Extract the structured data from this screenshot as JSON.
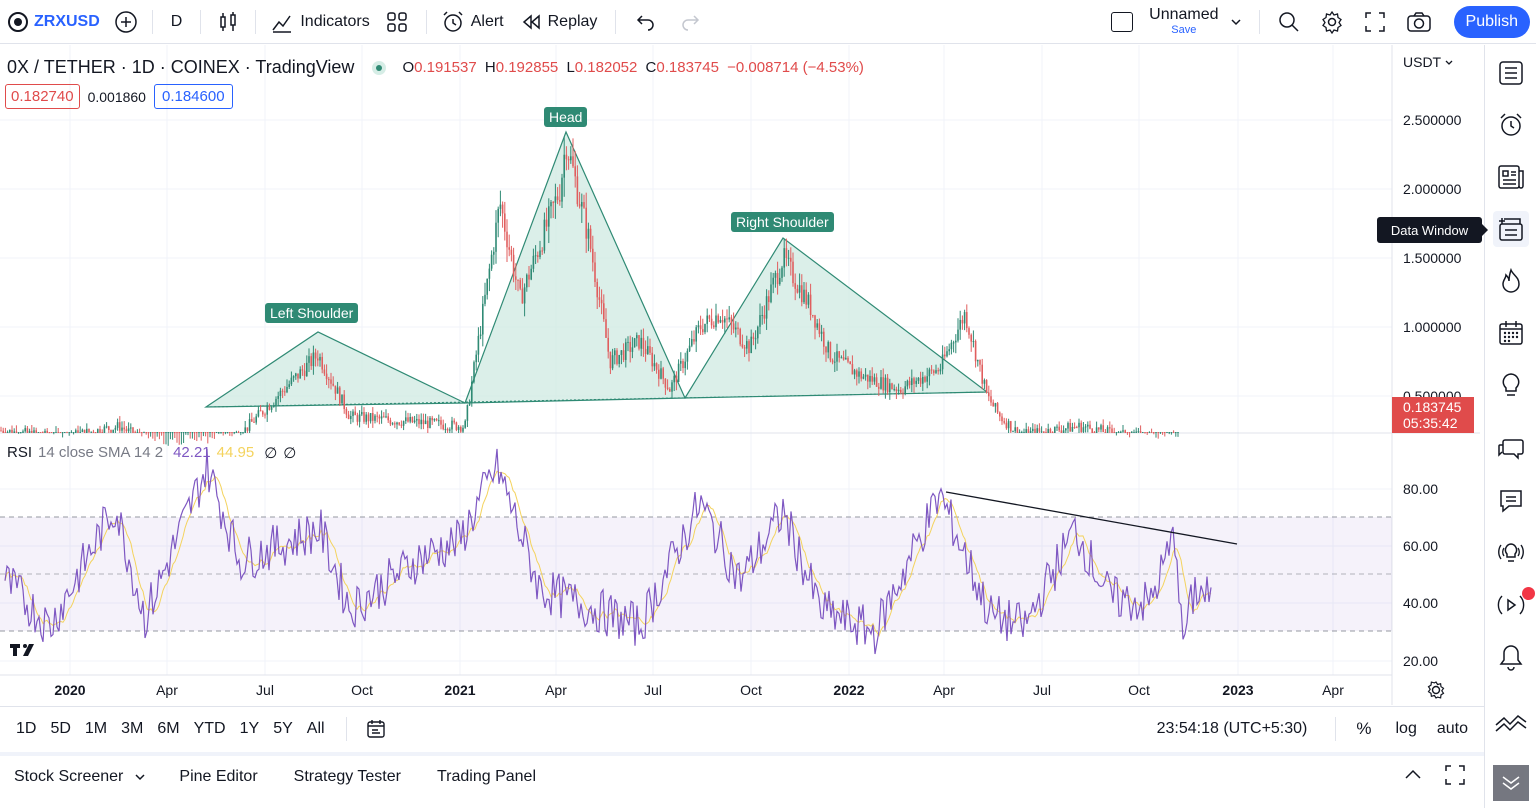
{
  "topbar": {
    "symbol": "ZRXUSD",
    "interval": "D",
    "indicators_label": "Indicators",
    "alert_label": "Alert",
    "replay_label": "Replay",
    "layout_name": "Unnamed",
    "save_label": "Save",
    "publish_label": "Publish"
  },
  "legend": {
    "title": "0X / TETHER · 1D · COINEX · TradingView",
    "o_label": "O",
    "o_val": "0.191537",
    "h_label": "H",
    "h_val": "0.192855",
    "l_label": "L",
    "l_val": "0.182052",
    "c_label": "C",
    "c_val": "0.183745",
    "change": "−0.008714 (−4.53%)",
    "bid": "0.182740",
    "spread": "0.001860",
    "ask": "0.184600"
  },
  "annotations": {
    "left_shoulder": "Left Shoulder",
    "head": "Head",
    "right_shoulder": "Right Shoulder"
  },
  "price_axis": {
    "currency": "USDT",
    "ticks": [
      "2.500000",
      "2.000000",
      "1.500000",
      "1.000000",
      "0.500000"
    ],
    "last_price": "0.183745",
    "countdown": "05:35:42"
  },
  "rsi": {
    "label": "RSI",
    "params": "14 close SMA 14 2",
    "value": "42.21",
    "sma_value": "44.95",
    "empty1": "∅",
    "empty2": "∅",
    "ticks": [
      "80.00",
      "60.00",
      "40.00",
      "20.00"
    ]
  },
  "time_axis": [
    "2020",
    "Apr",
    "Jul",
    "Oct",
    "2021",
    "Apr",
    "Jul",
    "Oct",
    "2022",
    "Apr",
    "Jul",
    "Oct",
    "2023",
    "Apr"
  ],
  "tooltip": "Data Window",
  "ranges": [
    "1D",
    "5D",
    "1M",
    "3M",
    "6M",
    "YTD",
    "1Y",
    "5Y",
    "All"
  ],
  "clock": "23:54:18 (UTC+5:30)",
  "scale_opts": {
    "percent": "%",
    "log": "log",
    "auto": "auto"
  },
  "bottom_tabs": [
    "Stock Screener",
    "Pine Editor",
    "Strategy Tester",
    "Trading Panel"
  ],
  "colors": {
    "accent": "#2962ff",
    "pattern_fill": "#cfeae1",
    "pattern_line": "#2f8a74",
    "candle_down": "#e05e5e",
    "candle_up": "#2f8a74",
    "rsi": "#7e57c2",
    "rsi_sma": "#f4d35e",
    "price_label": "#e04b4b"
  }
}
